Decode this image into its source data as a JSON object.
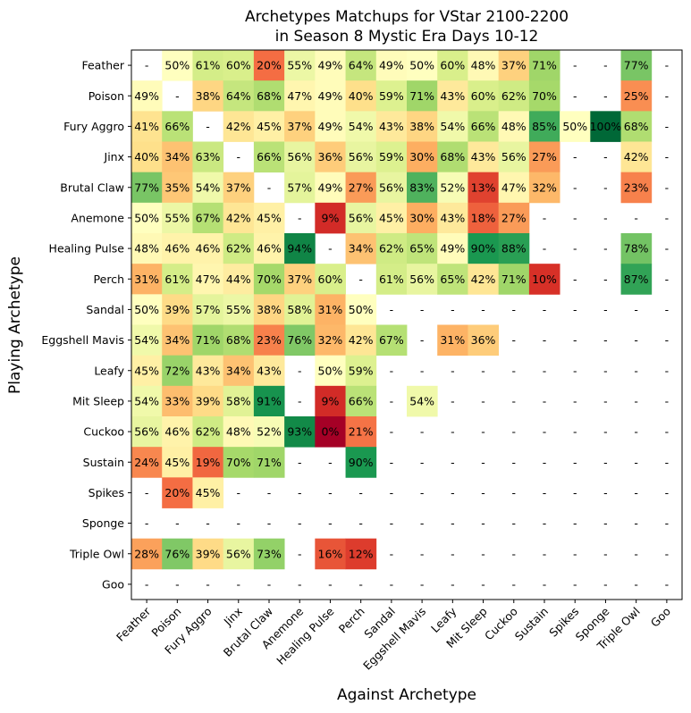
{
  "chart_data": {
    "type": "heatmap",
    "title_line1": "Archetypes Matchups for VStar 2100-2200",
    "title_line2": "in Season 8 Mystic Era Days 10-12",
    "xlabel": "Against Archetype",
    "ylabel": "Playing Archetype",
    "x_categories": [
      "Feather",
      "Poison",
      "Fury Aggro",
      "Jinx",
      "Brutal Claw",
      "Anemone",
      "Healing Pulse",
      "Perch",
      "Sandal",
      "Eggshell Mavis",
      "Leafy",
      "Mit Sleep",
      "Cuckoo",
      "Sustain",
      "Spikes",
      "Sponge",
      "Triple Owl",
      "Goo"
    ],
    "y_categories": [
      "Feather",
      "Poison",
      "Fury Aggro",
      "Jinx",
      "Brutal Claw",
      "Anemone",
      "Healing Pulse",
      "Perch",
      "Sandal",
      "Eggshell Mavis",
      "Leafy",
      "Mit Sleep",
      "Cuckoo",
      "Sustain",
      "Spikes",
      "Sponge",
      "Triple Owl",
      "Goo"
    ],
    "missing_label": "-",
    "colormap": "RdYlGn",
    "value_range": [
      0,
      100
    ],
    "values": [
      [
        null,
        50,
        61,
        60,
        20,
        55,
        49,
        64,
        49,
        50,
        60,
        48,
        37,
        71,
        null,
        null,
        77,
        null
      ],
      [
        49,
        null,
        38,
        64,
        68,
        47,
        49,
        40,
        59,
        71,
        43,
        60,
        62,
        70,
        null,
        null,
        25,
        null
      ],
      [
        41,
        66,
        null,
        42,
        45,
        37,
        49,
        54,
        43,
        38,
        54,
        66,
        48,
        85,
        50,
        100,
        68,
        null
      ],
      [
        40,
        34,
        63,
        null,
        66,
        56,
        36,
        56,
        59,
        30,
        68,
        43,
        56,
        27,
        null,
        null,
        42,
        null
      ],
      [
        77,
        35,
        54,
        37,
        null,
        57,
        49,
        27,
        56,
        83,
        52,
        13,
        47,
        32,
        null,
        null,
        23,
        null
      ],
      [
        50,
        55,
        67,
        42,
        45,
        null,
        9,
        56,
        45,
        30,
        43,
        18,
        27,
        null,
        null,
        null,
        null,
        null
      ],
      [
        48,
        46,
        46,
        62,
        46,
        94,
        null,
        34,
        62,
        65,
        49,
        90,
        88,
        null,
        null,
        null,
        78,
        null
      ],
      [
        31,
        61,
        47,
        44,
        70,
        37,
        60,
        null,
        61,
        56,
        65,
        42,
        71,
        10,
        null,
        null,
        87,
        null
      ],
      [
        50,
        39,
        57,
        55,
        38,
        58,
        31,
        50,
        null,
        null,
        null,
        null,
        null,
        null,
        null,
        null,
        null,
        null
      ],
      [
        54,
        34,
        71,
        68,
        23,
        76,
        32,
        42,
        67,
        null,
        31,
        36,
        null,
        null,
        null,
        null,
        null,
        null
      ],
      [
        45,
        72,
        43,
        34,
        43,
        null,
        50,
        59,
        null,
        null,
        null,
        null,
        null,
        null,
        null,
        null,
        null,
        null
      ],
      [
        54,
        33,
        39,
        58,
        91,
        null,
        9,
        66,
        null,
        54,
        null,
        null,
        null,
        null,
        null,
        null,
        null,
        null
      ],
      [
        56,
        46,
        62,
        48,
        52,
        93,
        0,
        21,
        null,
        null,
        null,
        null,
        null,
        null,
        null,
        null,
        null,
        null
      ],
      [
        24,
        45,
        19,
        70,
        71,
        null,
        null,
        90,
        null,
        null,
        null,
        null,
        null,
        null,
        null,
        null,
        null,
        null
      ],
      [
        null,
        20,
        45,
        null,
        null,
        null,
        null,
        null,
        null,
        null,
        null,
        null,
        null,
        null,
        null,
        null,
        null,
        null
      ],
      [
        null,
        null,
        null,
        null,
        null,
        null,
        null,
        null,
        null,
        null,
        null,
        null,
        null,
        null,
        null,
        null,
        null,
        null
      ],
      [
        28,
        76,
        39,
        56,
        73,
        null,
        16,
        12,
        null,
        null,
        null,
        null,
        null,
        null,
        null,
        null,
        null,
        null
      ],
      [
        null,
        null,
        null,
        null,
        null,
        null,
        null,
        null,
        null,
        null,
        null,
        null,
        null,
        null,
        null,
        null,
        null,
        null
      ]
    ]
  }
}
